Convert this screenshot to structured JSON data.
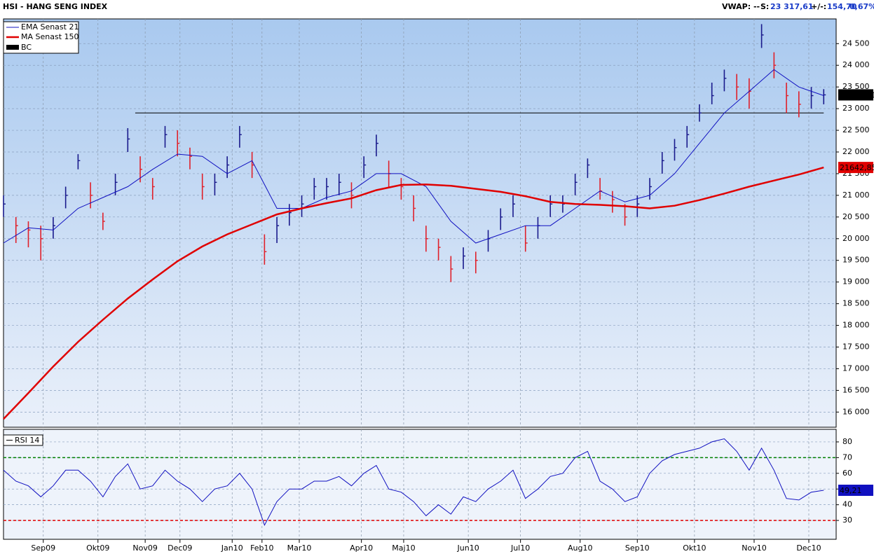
{
  "header": {
    "title": "HSI - HANG SENG INDEX",
    "vwap": "VWAP: --",
    "s_label": "S:",
    "s_value": "23 317,61",
    "change_label": "+/-:",
    "change": "154,70",
    "pct": "0,67%"
  },
  "chart_data": [
    {
      "type": "ohlc",
      "xlim": [
        0,
        335
      ],
      "ylim": [
        15650,
        25070
      ],
      "xticks": [
        {
          "value": 16,
          "label": "Sep09"
        },
        {
          "value": 38,
          "label": "Okt09"
        },
        {
          "value": 57,
          "label": "Nov09"
        },
        {
          "value": 71,
          "label": "Dec09"
        },
        {
          "value": 92,
          "label": "Jan10"
        },
        {
          "value": 104,
          "label": "Feb10"
        },
        {
          "value": 119,
          "label": "Mar10"
        },
        {
          "value": 144,
          "label": "Apr10"
        },
        {
          "value": 161,
          "label": "Maj10"
        },
        {
          "value": 187,
          "label": "Jun10"
        },
        {
          "value": 208,
          "label": "Jul10"
        },
        {
          "value": 232,
          "label": "Aug10"
        },
        {
          "value": 255,
          "label": "Sep10"
        },
        {
          "value": 278,
          "label": "Okt10"
        },
        {
          "value": 302,
          "label": "Nov10"
        },
        {
          "value": 324,
          "label": "Dec10"
        }
      ],
      "yticks": [
        {
          "value": 16000,
          "label": "16 000"
        },
        {
          "value": 16500,
          "label": "16 500"
        },
        {
          "value": 17000,
          "label": "17 000"
        },
        {
          "value": 17500,
          "label": "17 500"
        },
        {
          "value": 18000,
          "label": "18 000"
        },
        {
          "value": 18500,
          "label": "18 500"
        },
        {
          "value": 19000,
          "label": "19 000"
        },
        {
          "value": 19500,
          "label": "19 500"
        },
        {
          "value": 20000,
          "label": "20 000"
        },
        {
          "value": 20500,
          "label": "20 500"
        },
        {
          "value": 21000,
          "label": "21 000"
        },
        {
          "value": 21500,
          "label": "21 500"
        },
        {
          "value": 22000,
          "label": "22 000"
        },
        {
          "value": 22500,
          "label": "22 500"
        },
        {
          "value": 23000,
          "label": "23 000"
        },
        {
          "value": 23500,
          "label": "23 500"
        },
        {
          "value": 24000,
          "label": "24 000"
        },
        {
          "value": 24500,
          "label": "24 500"
        }
      ],
      "grid": true,
      "bar_name": "BC",
      "bar_color": "#000000",
      "up_color": "#1a1a8c",
      "down_color": "#e0202a",
      "x": [
        0,
        5,
        10,
        15,
        20,
        25,
        30,
        35,
        40,
        45,
        50,
        55,
        60,
        65,
        70,
        75,
        80,
        85,
        90,
        95,
        100,
        105,
        110,
        115,
        120,
        125,
        130,
        135,
        140,
        145,
        150,
        155,
        160,
        165,
        170,
        175,
        180,
        185,
        190,
        195,
        200,
        205,
        210,
        215,
        220,
        225,
        230,
        235,
        240,
        245,
        250,
        255,
        260,
        265,
        270,
        275,
        280,
        285,
        290,
        295,
        300,
        305,
        310,
        315,
        320,
        325,
        330
      ],
      "high": [
        21000,
        20500,
        20400,
        20300,
        20500,
        21200,
        21950,
        21300,
        20600,
        21500,
        22550,
        21900,
        21400,
        22600,
        22500,
        22100,
        21500,
        21500,
        21900,
        22600,
        22000,
        20100,
        20500,
        20800,
        21000,
        21400,
        21400,
        21500,
        21300,
        21900,
        22400,
        21800,
        21400,
        21000,
        20300,
        20000,
        19600,
        19800,
        19700,
        20200,
        20700,
        21000,
        20300,
        20500,
        21000,
        21000,
        21500,
        21850,
        21400,
        21100,
        20800,
        21000,
        21400,
        22000,
        22300,
        22600,
        23100,
        23600,
        23900,
        23800,
        23700,
        24950,
        24300,
        23600,
        23400,
        23500,
        23450
      ],
      "low": [
        20500,
        19900,
        19800,
        19500,
        20000,
        20700,
        21600,
        20700,
        20200,
        21000,
        22000,
        21300,
        20900,
        22100,
        21900,
        21600,
        20900,
        21000,
        21400,
        22100,
        21400,
        19400,
        19900,
        20300,
        20500,
        20900,
        20900,
        21000,
        20700,
        21400,
        21900,
        21200,
        20900,
        20400,
        19700,
        19500,
        19000,
        19300,
        19200,
        19700,
        20200,
        20500,
        19700,
        20000,
        20500,
        20600,
        21000,
        21400,
        20900,
        20600,
        20300,
        20500,
        20900,
        21500,
        21800,
        22100,
        22700,
        23100,
        23400,
        23200,
        23000,
        24400,
        23700,
        22900,
        22800,
        23000,
        23100
      ],
      "close": [
        20800,
        20300,
        20200,
        20000,
        20300,
        21000,
        21800,
        21000,
        20400,
        21300,
        22300,
        21600,
        21200,
        22400,
        22200,
        21900,
        21200,
        21300,
        21700,
        22400,
        21700,
        19700,
        20300,
        20600,
        20800,
        21200,
        21200,
        21300,
        21000,
        21700,
        22200,
        21500,
        21200,
        20700,
        20000,
        19800,
        19300,
        19600,
        19500,
        20000,
        20500,
        20800,
        19900,
        20300,
        20800,
        20800,
        21300,
        21700,
        21100,
        20900,
        20500,
        20800,
        21200,
        21800,
        22100,
        22400,
        22900,
        23300,
        23700,
        23500,
        23400,
        24700,
        24000,
        23300,
        23100,
        23300,
        23317.61
      ],
      "last_label": "23317,61",
      "hline": {
        "value": 22900,
        "x": [
          53,
          330
        ]
      },
      "series": [
        {
          "name": "EMA  Senast 21",
          "color": "#1010c0",
          "width": 1,
          "x": [
            0,
            10,
            20,
            30,
            40,
            50,
            60,
            70,
            80,
            90,
            100,
            110,
            120,
            130,
            140,
            150,
            160,
            170,
            180,
            190,
            200,
            210,
            220,
            230,
            240,
            250,
            260,
            270,
            280,
            290,
            300,
            310,
            320,
            330
          ],
          "values": [
            19900,
            20250,
            20200,
            20700,
            20950,
            21200,
            21600,
            21950,
            21900,
            21500,
            21800,
            20700,
            20700,
            20950,
            21100,
            21500,
            21500,
            21200,
            20400,
            19900,
            20100,
            20300,
            20300,
            20700,
            21100,
            20850,
            21000,
            21500,
            22200,
            22900,
            23400,
            23900,
            23500,
            23300
          ]
        },
        {
          "name": "MA  Senast 150",
          "color": "#e00000",
          "width": 2.5,
          "last_label": "21642,85",
          "x": [
            0,
            10,
            20,
            30,
            40,
            50,
            60,
            70,
            80,
            90,
            100,
            110,
            120,
            130,
            140,
            150,
            160,
            170,
            180,
            190,
            200,
            210,
            220,
            230,
            240,
            250,
            260,
            270,
            280,
            290,
            300,
            310,
            320,
            330
          ],
          "values": [
            15840,
            16440,
            17050,
            17620,
            18130,
            18620,
            19060,
            19480,
            19820,
            20100,
            20330,
            20560,
            20700,
            20820,
            20930,
            21120,
            21240,
            21250,
            21220,
            21150,
            21080,
            20980,
            20850,
            20800,
            20780,
            20750,
            20700,
            20760,
            20890,
            21040,
            21200,
            21340,
            21480,
            21642.85
          ]
        }
      ]
    },
    {
      "type": "line",
      "ylim": [
        18,
        88
      ],
      "yticks": [
        30,
        40,
        50,
        60,
        70,
        80
      ],
      "grid": true,
      "levels": [
        {
          "value": 70,
          "color": "#008000"
        },
        {
          "value": 30,
          "color": "#e00000"
        }
      ],
      "series": [
        {
          "name": "RSI  14",
          "color": "#1010c0",
          "last_label": "49,21",
          "x": [
            0,
            5,
            10,
            15,
            20,
            25,
            30,
            35,
            40,
            45,
            50,
            55,
            60,
            65,
            70,
            75,
            80,
            85,
            90,
            95,
            100,
            105,
            110,
            115,
            120,
            125,
            130,
            135,
            140,
            145,
            150,
            155,
            160,
            165,
            170,
            175,
            180,
            185,
            190,
            195,
            200,
            205,
            210,
            215,
            220,
            225,
            230,
            235,
            240,
            245,
            250,
            255,
            260,
            265,
            270,
            275,
            280,
            285,
            290,
            295,
            300,
            305,
            310,
            315,
            320,
            325,
            330
          ],
          "values": [
            62,
            55,
            52,
            45,
            52,
            62,
            62,
            55,
            45,
            58,
            66,
            50,
            52,
            62,
            55,
            50,
            42,
            50,
            52,
            60,
            50,
            27,
            42,
            50,
            50,
            55,
            55,
            58,
            52,
            60,
            65,
            50,
            48,
            42,
            33,
            40,
            34,
            45,
            42,
            50,
            55,
            62,
            44,
            50,
            58,
            60,
            70,
            74,
            55,
            50,
            42,
            45,
            60,
            68,
            72,
            74,
            76,
            80,
            82,
            74,
            62,
            76,
            62,
            44,
            43,
            48,
            49.21
          ]
        }
      ]
    }
  ]
}
